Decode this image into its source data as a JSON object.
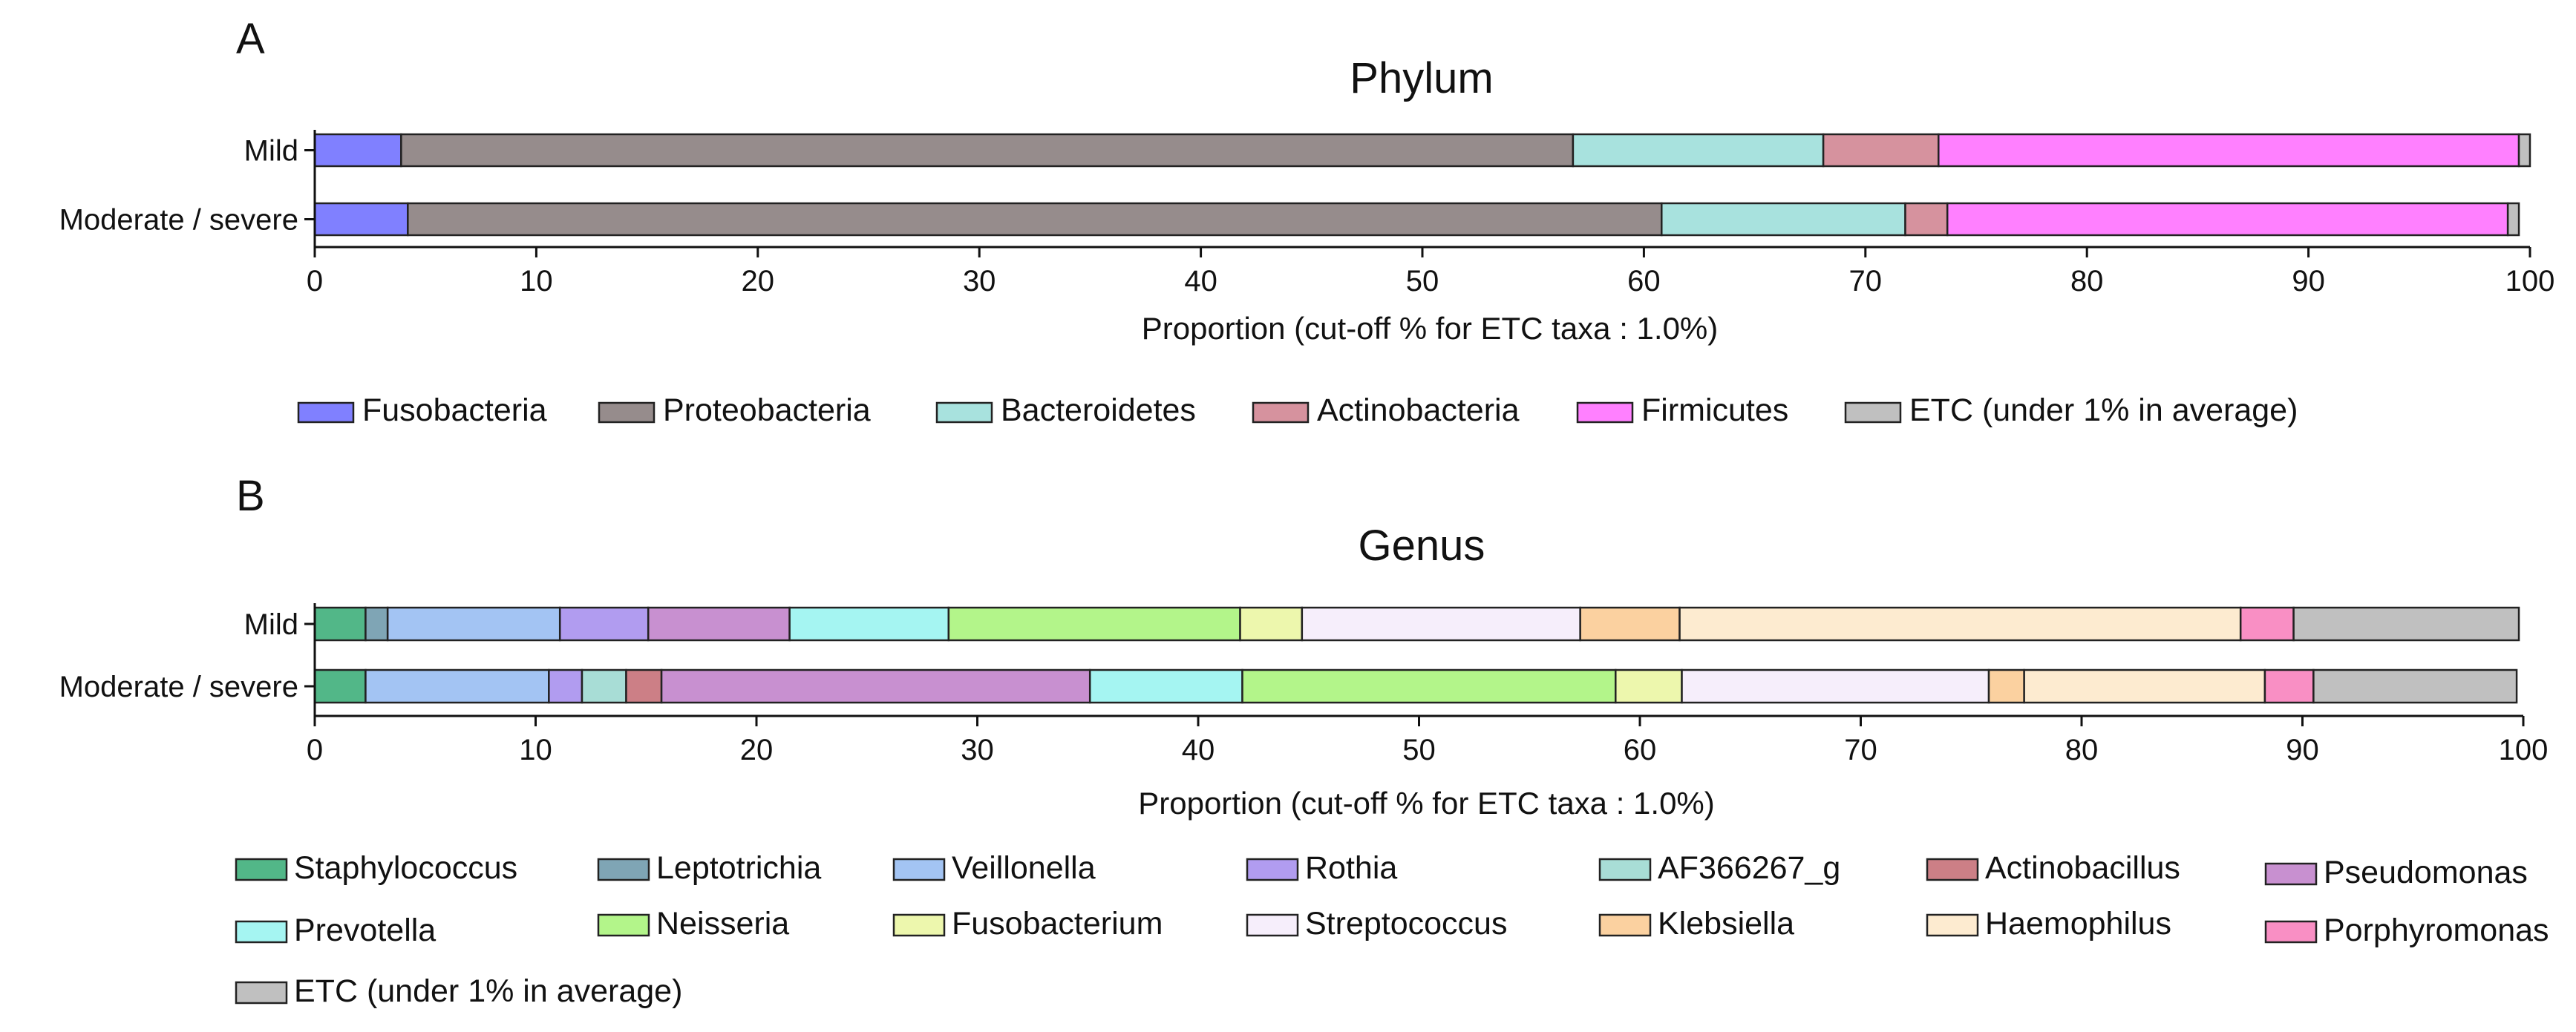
{
  "chart_data": [
    {
      "panel": "A",
      "type": "bar",
      "orientation": "horizontal",
      "stacked": true,
      "title": "Phylum",
      "xlabel": "Proportion (cut-off % for ETC taxa : 1.0%)",
      "ylabel": "",
      "xlim": [
        0,
        100
      ],
      "x_ticks": [
        "0",
        "10",
        "20",
        "30",
        "40",
        "50",
        "60",
        "70",
        "80",
        "90",
        "100"
      ],
      "categories": [
        "Mild",
        "Moderate / severe"
      ],
      "series": [
        {
          "name": "Fusobacteria",
          "color": "#8080ff",
          "values": [
            3.9,
            4.2
          ]
        },
        {
          "name": "Proteobacteria",
          "color": "#968c8c",
          "values": [
            52.9,
            56.6
          ]
        },
        {
          "name": "Bacteroidetes",
          "color": "#a8e2de",
          "values": [
            11.3,
            11.0
          ]
        },
        {
          "name": "Actinobacteria",
          "color": "#d6929e",
          "values": [
            5.2,
            1.9
          ]
        },
        {
          "name": "Firmicutes",
          "color": "#ff80ff",
          "values": [
            26.2,
            25.3
          ]
        },
        {
          "name": "ETC (under 1% in average)",
          "color": "#c0c0c0",
          "values": [
            0.5,
            0.5
          ]
        }
      ]
    },
    {
      "panel": "B",
      "type": "bar",
      "orientation": "horizontal",
      "stacked": true,
      "title": "Genus",
      "xlabel": "Proportion (cut-off % for ETC taxa : 1.0%)",
      "ylabel": "",
      "xlim": [
        0,
        100
      ],
      "x_ticks": [
        "0",
        "10",
        "20",
        "30",
        "40",
        "50",
        "60",
        "70",
        "80",
        "90",
        "100"
      ],
      "categories": [
        "Mild",
        "Moderate / severe"
      ],
      "series": [
        {
          "name": "Staphylococcus",
          "color": "#52b788",
          "values": [
            2.3,
            2.3
          ]
        },
        {
          "name": "Leptotrichia",
          "color": "#7fa5b5",
          "values": [
            1.0,
            0.0
          ]
        },
        {
          "name": "Veillonella",
          "color": "#a3c4f3",
          "values": [
            7.8,
            8.3
          ]
        },
        {
          "name": "Rothia",
          "color": "#b19cf0",
          "values": [
            4.0,
            1.5
          ]
        },
        {
          "name": "AF366267_g",
          "color": "#a8ddd6",
          "values": [
            0.0,
            2.0
          ]
        },
        {
          "name": "Actinobacillus",
          "color": "#cc7f86",
          "values": [
            0.0,
            1.6
          ]
        },
        {
          "name": "Pseudomonas",
          "color": "#c890d0",
          "values": [
            6.4,
            19.4
          ]
        },
        {
          "name": "Prevotella",
          "color": "#a5f5f2",
          "values": [
            7.2,
            6.9
          ]
        },
        {
          "name": "Neisseria",
          "color": "#b3f58a",
          "values": [
            13.2,
            16.9
          ]
        },
        {
          "name": "Fusobacterium",
          "color": "#edf7ad",
          "values": [
            2.8,
            3.0
          ]
        },
        {
          "name": "Streptococcus",
          "color": "#f6eefb",
          "values": [
            12.6,
            13.9
          ]
        },
        {
          "name": "Klebsiella",
          "color": "#fbd1a0",
          "values": [
            4.5,
            1.6
          ]
        },
        {
          "name": "Haemophilus",
          "color": "#fdebd0",
          "values": [
            25.4,
            10.9
          ]
        },
        {
          "name": "Porphyromonas",
          "color": "#f98fc4",
          "values": [
            2.4,
            2.2
          ]
        },
        {
          "name": "ETC (under 1% in average)",
          "color": "#c0c0c0",
          "values": [
            10.2,
            9.2
          ]
        }
      ]
    }
  ]
}
